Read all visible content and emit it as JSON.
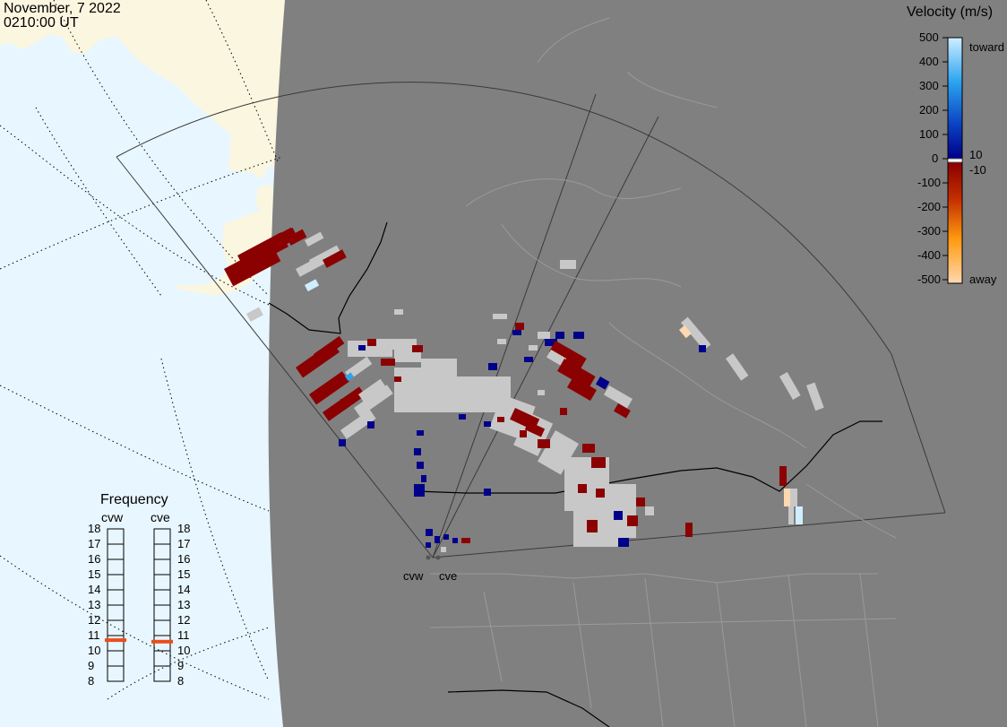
{
  "header": {
    "date": "November, 7 2022",
    "time": "0210:00 UT"
  },
  "velocity_scale": {
    "title": "Velocity (m/s)",
    "ticks": [
      "500",
      "400",
      "300",
      "200",
      "100",
      "0",
      "-100",
      "-200",
      "-300",
      "-400",
      "-500"
    ],
    "side_labels": {
      "toward": "toward",
      "pos_threshold": "10",
      "neg_threshold": "-10",
      "away": "away"
    },
    "colors": {
      "toward_max": "#cfeeff",
      "toward_mid": "#2ba4f0",
      "toward_low": "#0a3ec0",
      "toward_min": "#00008a",
      "ground": "#c8c8c8",
      "away_min": "#8b0000",
      "away_mid": "#e0500a",
      "away_high": "#ff9a10",
      "away_max": "#ffd8b0"
    }
  },
  "frequency_panel": {
    "title": "Frequency",
    "radars": [
      {
        "name": "cvw",
        "value_mhz": 10.7
      },
      {
        "name": "cve",
        "value_mhz": 10.6
      }
    ],
    "scale": [
      "18",
      "17",
      "16",
      "15",
      "14",
      "13",
      "12",
      "11",
      "10",
      "9",
      "8"
    ],
    "marker_color": "#e84e1b"
  },
  "map": {
    "land_color": "#808080",
    "ocean_color": "#e8f6ff",
    "outside_land_color": "#fbf6e0",
    "sites": [
      {
        "code": "cvw"
      },
      {
        "code": "cve"
      }
    ]
  }
}
